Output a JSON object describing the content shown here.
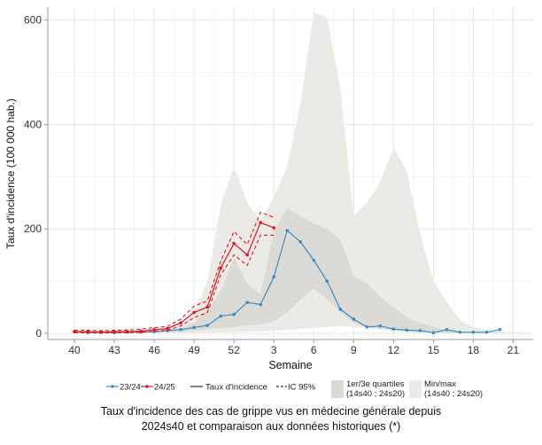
{
  "chart_data": {
    "type": "line",
    "ylabel": "Taux d'incidence (100 000 hab.)",
    "xlabel": "Semaine",
    "x_tick_labels": [
      "40",
      "43",
      "46",
      "49",
      "52",
      "3",
      "6",
      "9",
      "12",
      "15",
      "18",
      "21"
    ],
    "x_ticks_at_index": [
      0,
      3,
      6,
      9,
      12,
      15,
      18,
      21,
      24,
      27,
      30,
      33
    ],
    "y_ticks": [
      0,
      200,
      400,
      600
    ],
    "xlim_index": [
      -2,
      34.5
    ],
    "ylim": [
      -12,
      625
    ],
    "grid": true,
    "legend_position": "bottom",
    "legend": {
      "s2324": "23/24",
      "s2425": "24/25",
      "taux": "Taux d'incidence",
      "ic": "IC 95%",
      "quartiles_line1": "1er/3e quartiles",
      "quartiles_line2": "(14s40 ; 24s20)",
      "minmax_line1": "Min/max",
      "minmax_line2": "(14s40 ; 24s20)"
    },
    "minmax_band": {
      "x": [
        0,
        2,
        4,
        6,
        8,
        9,
        10,
        11,
        12,
        13,
        14,
        15,
        16,
        17,
        18,
        19,
        20,
        21,
        22,
        23,
        24,
        25,
        26,
        27,
        28,
        29,
        30,
        31,
        32,
        33,
        34
      ],
      "lower": [
        0,
        0,
        0,
        0,
        0,
        1,
        1,
        2,
        3,
        3,
        4,
        5,
        6,
        8,
        10,
        12,
        14,
        12,
        10,
        8,
        6,
        5,
        4,
        3,
        2,
        1,
        1,
        0,
        0,
        0,
        0
      ],
      "upper": [
        5,
        5,
        5,
        6,
        12,
        40,
        100,
        245,
        320,
        250,
        215,
        260,
        320,
        440,
        615,
        605,
        470,
        225,
        250,
        290,
        355,
        310,
        190,
        100,
        60,
        25,
        12,
        6,
        3,
        2,
        1
      ]
    },
    "quartile_band": {
      "x": [
        0,
        2,
        4,
        6,
        8,
        9,
        10,
        11,
        12,
        13,
        14,
        15,
        16,
        17,
        18,
        19,
        20,
        21,
        22,
        23,
        24,
        25,
        26,
        27,
        28,
        29,
        30,
        31,
        32,
        33,
        34
      ],
      "lower": [
        0,
        0,
        0,
        1,
        3,
        5,
        8,
        10,
        12,
        15,
        17,
        22,
        40,
        65,
        85,
        65,
        40,
        20,
        12,
        8,
        5,
        3,
        2,
        1,
        1,
        0,
        0,
        0,
        0,
        0,
        0
      ],
      "upper": [
        2,
        2,
        3,
        4,
        10,
        20,
        45,
        80,
        145,
        95,
        75,
        195,
        240,
        225,
        210,
        200,
        180,
        110,
        95,
        70,
        50,
        30,
        20,
        12,
        6,
        3,
        2,
        1,
        1,
        0,
        0
      ]
    },
    "series": [
      {
        "name": "23/24",
        "color": "#3c8dc4",
        "x": [
          0,
          1,
          2,
          3,
          4,
          5,
          6,
          7,
          8,
          9,
          10,
          11,
          12,
          13,
          14,
          15,
          16,
          17,
          18,
          19,
          20,
          21,
          22,
          23,
          24,
          25,
          26,
          27,
          28,
          29,
          30,
          31,
          32
        ],
        "values": [
          3,
          1,
          2,
          1,
          2,
          2,
          3,
          5,
          7,
          11,
          15,
          33,
          36,
          59,
          55,
          108,
          197,
          175,
          140,
          100,
          46,
          27,
          12,
          14,
          8,
          6,
          5,
          1,
          7,
          2,
          2,
          2,
          7
        ]
      },
      {
        "name": "24/25",
        "color": "#e3131b",
        "x": [
          0,
          1,
          2,
          3,
          4,
          5,
          6,
          7,
          8,
          9,
          10,
          11,
          12,
          13,
          14,
          15
        ],
        "values": [
          3,
          3,
          2,
          3,
          3,
          4,
          7,
          9,
          20,
          40,
          50,
          125,
          172,
          150,
          212,
          202
        ],
        "ci_upper": [
          6,
          6,
          5,
          6,
          6,
          8,
          11,
          13,
          27,
          52,
          62,
          138,
          195,
          170,
          232,
          222
        ],
        "ci_lower": [
          1,
          1,
          0,
          1,
          1,
          2,
          4,
          6,
          14,
          30,
          40,
          112,
          150,
          130,
          188,
          188
        ]
      }
    ]
  },
  "caption": {
    "line1": "Taux d'incidence des cas de grippe vus en médecine générale depuis",
    "line2": "2024s40 et comparaison aux données historiques (*)"
  }
}
